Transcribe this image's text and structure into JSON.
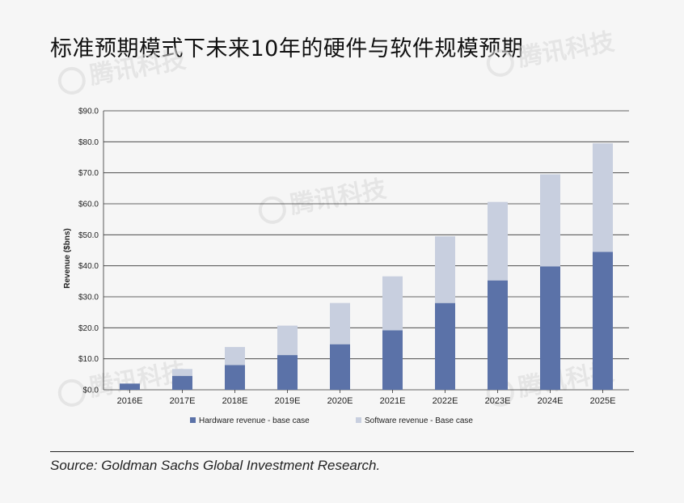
{
  "header": {
    "title": "标准预期模式下未来10年的硬件与软件规模预期"
  },
  "watermark": {
    "text": "腾讯科技"
  },
  "source": {
    "text": "Source: Goldman Sachs Global Investment Research."
  },
  "colors": {
    "hardware": "#5b72a8",
    "software": "#c8cfdf",
    "grid": "#333333",
    "background": "#f6f6f6"
  },
  "chart_data": {
    "type": "bar",
    "stacked": true,
    "title": "",
    "xlabel": "",
    "ylabel": "Revenue ($bns)",
    "ylim": [
      0,
      90
    ],
    "yticks": [
      0,
      10,
      20,
      30,
      40,
      50,
      60,
      70,
      80,
      90
    ],
    "ytick_labels": [
      "$0.0",
      "$10.0",
      "$20.0",
      "$30.0",
      "$40.0",
      "$50.0",
      "$60.0",
      "$70.0",
      "$80.0",
      "$90.0"
    ],
    "categories": [
      "2016E",
      "2017E",
      "2018E",
      "2019E",
      "2020E",
      "2021E",
      "2022E",
      "2023E",
      "2024E",
      "2025E"
    ],
    "series": [
      {
        "name": "Hardware revenue - base case",
        "values": [
          2.0,
          4.5,
          8.0,
          11.2,
          14.7,
          19.2,
          28.0,
          35.3,
          39.8,
          44.5
        ]
      },
      {
        "name": "Software revenue - Base case",
        "values": [
          0.0,
          2.2,
          5.8,
          9.5,
          13.3,
          17.4,
          21.5,
          25.3,
          29.7,
          35.0
        ]
      }
    ],
    "legend": "bottom-center",
    "grid": true
  }
}
